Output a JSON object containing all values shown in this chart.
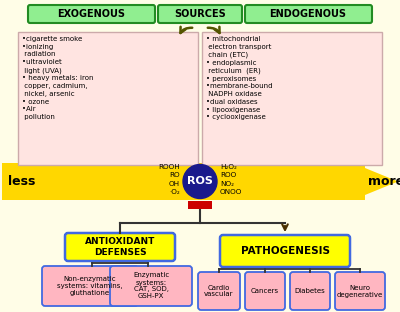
{
  "bg_color": "#FFFDE7",
  "exogenous_text": "•cigarette smoke\n•ionizing\n radiation\n•ultraviolet\n light (UVA)\n• heavy metals: iron\n copper, cadmium,\n nickel, arsenic\n• ozone\n•Air\n pollution",
  "endogenous_text": "• mitochondrial\n electron transport\n chain (ETC)\n• endoplasmic\n reticulum  (ER)\n• peroxisomes\n•membrane-bound\n NADPH oxidase\n•dual oxidases\n• lipooxigenase\n• cyclooxigenase",
  "left_ros": "ROOH\nRO\nOH\n·O₂",
  "right_ros": "H₂O₂\nROO\nNO₂\nONOO",
  "sources_box_color": "#90EE90",
  "sources_outline": "#228B22",
  "content_box_color": "#FFE4E1",
  "content_box_outline": "#ccaaaa",
  "yellow_color": "#FFFF99",
  "yellow_arrow_color": "#FFD700",
  "antioxidant_box_color": "#FFFF00",
  "antioxidant_outline": "#4169E1",
  "pathogenesis_box_color": "#FFFF00",
  "pathogenesis_outline": "#4169E1",
  "sub_box_color": "#FFB6C1",
  "sub_box_outline": "#4169E1",
  "ros_circle_color": "#1a1a8c",
  "ros_text_color": "#FFFFFF",
  "red_bar_color": "#CC0000",
  "arrow_color": "#555500",
  "line_color": "#333333"
}
